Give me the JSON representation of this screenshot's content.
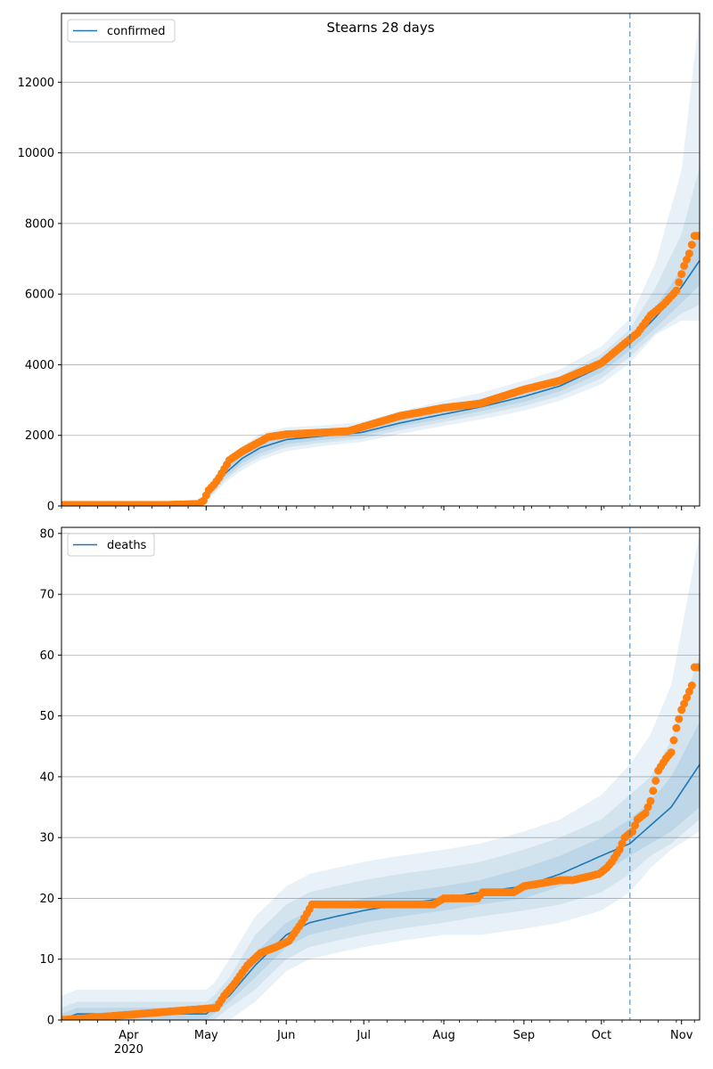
{
  "chart_data": [
    {
      "type": "line",
      "title": "Stearns 28 days",
      "legend": {
        "label": "confirmed",
        "position": "top-left"
      },
      "xlabel": "",
      "ylabel": "",
      "ylim": [
        0,
        13950
      ],
      "yticks": [
        0,
        2000,
        4000,
        6000,
        8000,
        10000,
        12000
      ],
      "grid": "y",
      "forecast_start_date": "2020-10-12",
      "colors": {
        "line": "#1f77b4",
        "observed": "#ff7f0e",
        "band": "#1f77b4",
        "vline": "#1f77b4"
      },
      "model": {
        "x": [
          "2020-03-06",
          "2020-04-25",
          "2020-04-30",
          "2020-05-04",
          "2020-05-08",
          "2020-05-15",
          "2020-05-22",
          "2020-06-01",
          "2020-06-15",
          "2020-06-30",
          "2020-07-15",
          "2020-08-01",
          "2020-08-15",
          "2020-09-01",
          "2020-09-15",
          "2020-10-01",
          "2020-10-12",
          "2020-10-22",
          "2020-11-01",
          "2020-11-08"
        ],
        "median": [
          30,
          35,
          150,
          500,
          900,
          1350,
          1650,
          1880,
          1980,
          2080,
          2350,
          2600,
          2800,
          3100,
          3400,
          3950,
          4600,
          5350,
          6200,
          6950
        ],
        "band1_lo": [
          25,
          30,
          120,
          430,
          800,
          1220,
          1500,
          1750,
          1870,
          1980,
          2250,
          2480,
          2680,
          2950,
          3250,
          3780,
          4400,
          5050,
          5750,
          6250
        ],
        "band1_hi": [
          35,
          40,
          180,
          570,
          1000,
          1480,
          1800,
          2010,
          2090,
          2180,
          2450,
          2720,
          2920,
          3250,
          3550,
          4130,
          4800,
          5650,
          6700,
          7700
        ],
        "band2_lo": [
          20,
          25,
          100,
          380,
          720,
          1120,
          1400,
          1660,
          1790,
          1900,
          2150,
          2380,
          2570,
          2830,
          3120,
          3620,
          4220,
          4900,
          5450,
          5700
        ],
        "band2_hi": [
          40,
          45,
          200,
          620,
          1080,
          1580,
          1900,
          2100,
          2170,
          2270,
          2550,
          2830,
          3040,
          3380,
          3680,
          4300,
          5000,
          6200,
          7700,
          9600
        ],
        "band3_lo": [
          15,
          20,
          80,
          330,
          640,
          1020,
          1300,
          1550,
          1700,
          1810,
          2040,
          2270,
          2450,
          2700,
          2980,
          3450,
          4050,
          4850,
          5250,
          5250
        ],
        "band3_hi": [
          45,
          50,
          230,
          680,
          1180,
          1700,
          2050,
          2230,
          2280,
          2380,
          2680,
          2980,
          3200,
          3550,
          3870,
          4520,
          5300,
          6900,
          9500,
          13950
        ]
      },
      "observed": {
        "x": [
          "2020-03-06",
          "2020-04-15",
          "2020-04-28",
          "2020-04-30",
          "2020-05-02",
          "2020-05-04",
          "2020-05-06",
          "2020-05-08",
          "2020-05-10",
          "2020-05-12",
          "2020-05-15",
          "2020-05-20",
          "2020-05-25",
          "2020-06-01",
          "2020-06-15",
          "2020-06-25",
          "2020-07-01",
          "2020-07-15",
          "2020-08-01",
          "2020-08-15",
          "2020-09-01",
          "2020-09-15",
          "2020-10-01",
          "2020-10-10",
          "2020-10-15",
          "2020-10-20",
          "2020-10-25",
          "2020-10-30",
          "2020-11-02",
          "2020-11-04",
          "2020-11-06"
        ],
        "y": [
          30,
          30,
          60,
          150,
          450,
          600,
          800,
          1050,
          1300,
          1400,
          1550,
          1750,
          1950,
          2030,
          2080,
          2120,
          2250,
          2550,
          2780,
          2900,
          3300,
          3550,
          4050,
          4600,
          4900,
          5400,
          5700,
          6100,
          6800,
          7150,
          7650
        ]
      }
    },
    {
      "type": "line",
      "title": "",
      "legend": {
        "label": "deaths",
        "position": "top-left"
      },
      "xlabel": "",
      "ylabel": "",
      "ylim": [
        0,
        81
      ],
      "yticks": [
        0,
        10,
        20,
        30,
        40,
        50,
        60,
        70,
        80
      ],
      "grid": "y",
      "forecast_start_date": "2020-10-12",
      "colors": {
        "line": "#1f77b4",
        "observed": "#ff7f0e",
        "band": "#1f77b4",
        "vline": "#1f77b4"
      },
      "model": {
        "x": [
          "2020-03-06",
          "2020-03-12",
          "2020-05-01",
          "2020-05-04",
          "2020-05-10",
          "2020-05-20",
          "2020-06-01",
          "2020-06-10",
          "2020-06-20",
          "2020-07-01",
          "2020-07-15",
          "2020-08-01",
          "2020-08-15",
          "2020-09-01",
          "2020-09-15",
          "2020-10-01",
          "2020-10-12",
          "2020-10-20",
          "2020-10-28",
          "2020-11-08"
        ],
        "median": [
          0,
          1,
          1,
          2,
          4,
          9,
          14,
          16,
          17,
          18,
          19,
          20,
          21,
          22,
          24,
          27,
          29,
          32,
          35,
          42
        ],
        "band1_lo": [
          0,
          0,
          0,
          1,
          3,
          7,
          12,
          14,
          15,
          16,
          17,
          18,
          19,
          20,
          22,
          24,
          27,
          29,
          31,
          35
        ],
        "band1_hi": [
          1,
          2,
          2,
          3,
          5,
          11,
          16,
          18,
          19,
          20,
          21,
          22,
          23,
          25,
          27,
          30,
          33,
          36,
          40,
          49
        ],
        "band2_lo": [
          0,
          0,
          0,
          0,
          2,
          5,
          10,
          12,
          13,
          14,
          15,
          16,
          17,
          18,
          19,
          21,
          24,
          27,
          29,
          33
        ],
        "band2_hi": [
          2,
          3,
          3,
          4,
          7,
          14,
          19,
          21,
          22,
          23,
          24,
          25,
          26,
          28,
          30,
          33,
          37,
          40,
          46,
          60
        ],
        "band3_lo": [
          0,
          0,
          0,
          0,
          0,
          3,
          8,
          10,
          11,
          12,
          13,
          14,
          14,
          15,
          16,
          18,
          21,
          25,
          28,
          31
        ],
        "band3_hi": [
          4,
          5,
          5,
          6,
          10,
          17,
          22,
          24,
          25,
          26,
          27,
          28,
          29,
          31,
          33,
          37,
          42,
          47,
          55,
          80
        ]
      },
      "observed": {
        "x": [
          "2020-03-06",
          "2020-05-05",
          "2020-05-08",
          "2020-05-12",
          "2020-05-17",
          "2020-05-22",
          "2020-05-28",
          "2020-06-02",
          "2020-06-07",
          "2020-06-11",
          "2020-06-30",
          "2020-07-15",
          "2020-07-28",
          "2020-08-01",
          "2020-08-14",
          "2020-08-16",
          "2020-08-28",
          "2020-09-01",
          "2020-09-15",
          "2020-09-20",
          "2020-09-30",
          "2020-10-03",
          "2020-10-05",
          "2020-10-08",
          "2020-10-10",
          "2020-10-13",
          "2020-10-15",
          "2020-10-18",
          "2020-10-20",
          "2020-10-23",
          "2020-10-26",
          "2020-10-28",
          "2020-10-30",
          "2020-11-01",
          "2020-11-03",
          "2020-11-05",
          "2020-11-06"
        ],
        "y": [
          0,
          2,
          4,
          6,
          9,
          11,
          12,
          13,
          16,
          19,
          19,
          19,
          19,
          20,
          20,
          21,
          21,
          22,
          23,
          23,
          24,
          25,
          26,
          28,
          30,
          31,
          33,
          34,
          36,
          41,
          43,
          44,
          48,
          51,
          53,
          55,
          58
        ]
      }
    }
  ],
  "x_axis": {
    "start": "2020-03-06",
    "end": "2020-11-08",
    "month_ticks": [
      {
        "date": "2020-04-01",
        "label": "Apr",
        "sublabel": "2020"
      },
      {
        "date": "2020-05-01",
        "label": "May",
        "sublabel": ""
      },
      {
        "date": "2020-06-01",
        "label": "Jun",
        "sublabel": ""
      },
      {
        "date": "2020-07-01",
        "label": "Jul",
        "sublabel": ""
      },
      {
        "date": "2020-08-01",
        "label": "Aug",
        "sublabel": ""
      },
      {
        "date": "2020-09-01",
        "label": "Sep",
        "sublabel": ""
      },
      {
        "date": "2020-10-01",
        "label": "Oct",
        "sublabel": ""
      },
      {
        "date": "2020-11-01",
        "label": "Nov",
        "sublabel": ""
      }
    ]
  }
}
